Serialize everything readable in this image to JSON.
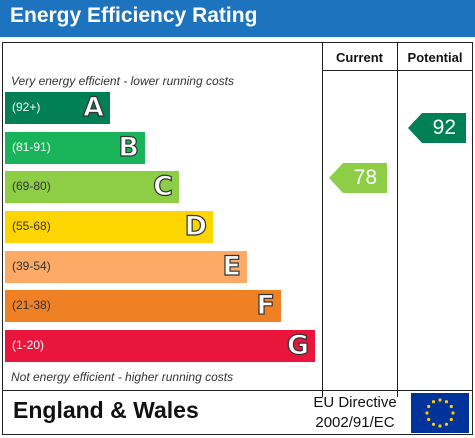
{
  "header": {
    "title": "Energy Efficiency Rating",
    "background": "#1e73be"
  },
  "columns": {
    "current": "Current",
    "potential": "Potential"
  },
  "notes": {
    "top": "Very energy efficient - lower running costs",
    "bottom": "Not energy efficient - higher running costs"
  },
  "bands": [
    {
      "range": "(92+)",
      "letter": "A",
      "color": "#008054"
    },
    {
      "range": "(81-91)",
      "letter": "B",
      "color": "#19b459"
    },
    {
      "range": "(69-80)",
      "letter": "C",
      "color": "#8dce46"
    },
    {
      "range": "(55-68)",
      "letter": "D",
      "color": "#ffd500"
    },
    {
      "range": "(39-54)",
      "letter": "E",
      "color": "#fcaa65"
    },
    {
      "range": "(21-38)",
      "letter": "F",
      "color": "#ef8023"
    },
    {
      "range": "(1-20)",
      "letter": "G",
      "color": "#e9153b"
    }
  ],
  "current": {
    "value": "78",
    "color": "#8dce46"
  },
  "potential": {
    "value": "92",
    "color": "#008054"
  },
  "footer": {
    "country": "England & Wales",
    "directive_line1": "EU Directive",
    "directive_line2": "2002/91/EC",
    "flag_icon": "eu-flag-icon",
    "flag_color": "#003399",
    "star_color": "#ffcc00"
  }
}
